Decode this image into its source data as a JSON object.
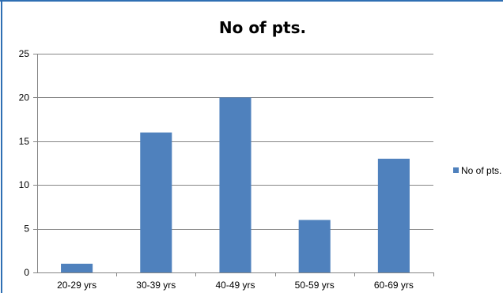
{
  "chart_data": {
    "type": "bar",
    "title": "No of pts.",
    "xlabel": "",
    "ylabel": "",
    "categories": [
      "20-29 yrs",
      "30-39 yrs",
      "40-49 yrs",
      "50-59 yrs",
      "60-69 yrs"
    ],
    "series": [
      {
        "name": "No of pts.",
        "values": [
          1,
          16,
          20,
          6,
          13
        ],
        "color": "#4f81bd"
      }
    ],
    "ylim": [
      0,
      25
    ],
    "yticks": [
      0,
      5,
      10,
      15,
      20,
      25
    ],
    "grid": true,
    "legend_position": "right",
    "frame_color": "#2f6fb3"
  }
}
